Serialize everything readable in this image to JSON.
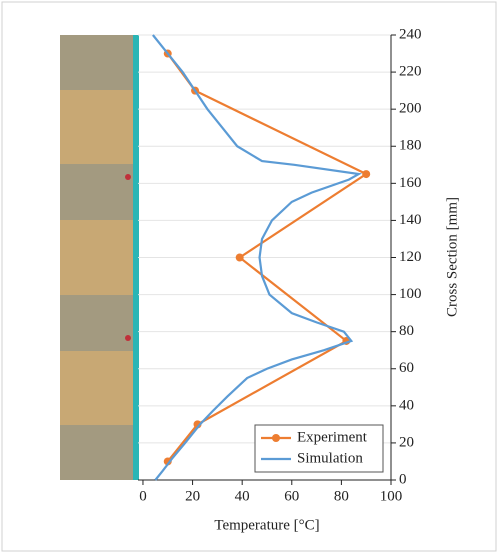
{
  "chart_data": {
    "type": "line",
    "xlabel": "Temperature [°C]",
    "ylabel": "Cross Section [mm]",
    "xlim": [
      -2,
      100
    ],
    "xticks": [
      0,
      20,
      40,
      60,
      80,
      100
    ],
    "ylim": [
      0,
      240
    ],
    "yticks": [
      0,
      20,
      40,
      60,
      80,
      100,
      120,
      140,
      160,
      180,
      200,
      220,
      240
    ],
    "grid": true,
    "legend": "lower right",
    "series": [
      {
        "name": "Experiment",
        "color": "#ed7d31",
        "markers": true,
        "x": [
          10,
          21,
          90,
          39,
          82,
          22,
          10
        ],
        "values": [
          230,
          210,
          165,
          120,
          75,
          30,
          10
        ]
      },
      {
        "name": "Simulation",
        "color": "#5b9bd5",
        "markers": false,
        "x": [
          4,
          10,
          16,
          21,
          26,
          32,
          38,
          48,
          61,
          87,
          83,
          68,
          60,
          52,
          48,
          47,
          48,
          51,
          60,
          70,
          81,
          84,
          73,
          60,
          50,
          42,
          34,
          28,
          23,
          17,
          12,
          8,
          5
        ],
        "values": [
          240,
          230,
          220,
          210,
          200,
          190,
          180,
          172,
          170,
          165,
          162,
          155,
          150,
          140,
          130,
          120,
          110,
          100,
          90,
          85,
          80,
          75,
          70,
          65,
          60,
          55,
          45,
          37,
          30,
          20,
          12,
          5,
          0
        ]
      }
    ]
  }
}
